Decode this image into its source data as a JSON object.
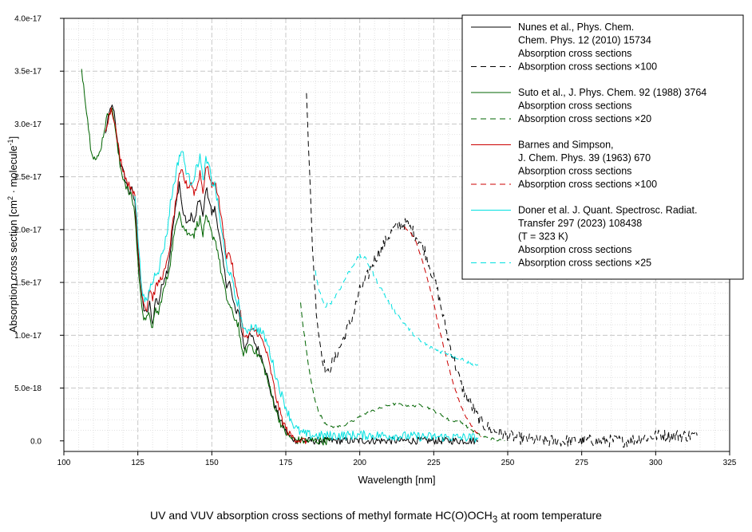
{
  "caption": {
    "main": "UV and VUV absorption cross sections of methyl formate HC(O)OCH",
    "sub": "3",
    "tail": " at room temperature"
  },
  "chart_data": {
    "type": "line",
    "title": "UV and VUV absorption cross sections of methyl formate HC(O)OCH3 at room temperature",
    "xlabel": "Wavelength [nm]",
    "ylabel": {
      "a": "Absorption cross section [cm",
      "sup1": "2",
      "b": " · molecule",
      "sup2": "-1",
      "c": "]"
    },
    "xlim": [
      100,
      325
    ],
    "ylim": [
      -1e-18,
      4e-17
    ],
    "xticks": [
      "100",
      "125",
      "150",
      "175",
      "200",
      "225",
      "250",
      "275",
      "300",
      "325"
    ],
    "yticks": [
      {
        "v": 0,
        "label": "0.0"
      },
      {
        "v": 5e-18,
        "label": "5.0e-18"
      },
      {
        "v": 1e-17,
        "label": "1.0e-17"
      },
      {
        "v": 1.5e-17,
        "label": "1.5e-17"
      },
      {
        "v": 2e-17,
        "label": "2.0e-17"
      },
      {
        "v": 2.5e-17,
        "label": "2.5e-17"
      },
      {
        "v": 3e-17,
        "label": "3.0e-17"
      },
      {
        "v": 3.5e-17,
        "label": "3.5e-17"
      },
      {
        "v": 4e-17,
        "label": "4.0e-17"
      }
    ],
    "grid": true,
    "legend_position": "top-right",
    "series": [
      {
        "name": "Nunes et al. absorption cross sections",
        "color": "#000000",
        "dash": "solid",
        "noise": 0.35,
        "x": [
          114,
          115,
          116,
          117,
          118,
          119,
          120,
          121,
          122,
          123,
          124,
          125,
          126,
          127,
          128,
          129,
          130,
          131,
          132,
          133,
          134,
          135,
          136,
          137,
          138,
          139,
          140,
          141,
          142,
          143,
          144,
          145,
          146,
          147,
          148,
          149,
          150,
          151,
          152,
          153,
          154,
          155,
          156,
          157,
          158,
          159,
          160,
          161,
          162,
          163,
          164,
          165,
          166,
          167,
          168,
          169,
          170,
          172,
          174,
          176,
          178,
          180,
          185,
          200,
          220,
          240
        ],
        "y": [
          2.9e-17,
          3.05e-17,
          3.18e-17,
          3.1e-17,
          2.85e-17,
          2.65e-17,
          2.55e-17,
          2.45e-17,
          2.35e-17,
          2.38e-17,
          2.25e-17,
          1.8e-17,
          1.45e-17,
          1.25e-17,
          1.2e-17,
          1.3e-17,
          1.1e-17,
          1.35e-17,
          1.3e-17,
          1.45e-17,
          1.55e-17,
          1.62e-17,
          1.8e-17,
          2.05e-17,
          2.25e-17,
          2.45e-17,
          2.2e-17,
          2.1e-17,
          2.05e-17,
          2.15e-17,
          2.05e-17,
          2.2e-17,
          2.3e-17,
          2.1e-17,
          2.4e-17,
          2.3e-17,
          2.15e-17,
          2.2e-17,
          2.05e-17,
          1.85e-17,
          1.65e-17,
          1.48e-17,
          1.5e-17,
          1.35e-17,
          1.22e-17,
          1.25e-17,
          1.05e-17,
          8.8e-18,
          9.5e-18,
          1e-17,
          9.6e-18,
          9e-18,
          8.5e-18,
          7.8e-18,
          7e-18,
          5.8e-18,
          4.5e-18,
          2.8e-18,
          1.4e-18,
          5e-19,
          1e-19,
          2e-20,
          8e-21,
          1.3e-20,
          1.8e-20,
          8e-21
        ]
      },
      {
        "name": "Nunes et al. absorption cross sections ×100",
        "color": "#000000",
        "dash": "7,5",
        "noise": 0.6,
        "x": [
          182,
          183,
          184,
          185,
          186,
          187,
          188,
          189,
          190,
          192,
          195,
          198,
          200,
          203,
          205,
          208,
          210,
          212,
          214,
          216,
          218,
          220,
          222,
          224,
          226,
          228,
          230,
          232,
          234,
          236,
          238,
          240,
          242,
          245,
          248,
          250,
          255,
          260,
          265,
          270,
          280,
          290,
          300,
          305,
          310,
          314
        ],
        "y": [
          3.35e-17,
          2.55e-17,
          1.85e-17,
          1.35e-17,
          1.05e-17,
          8.5e-18,
          7.2e-18,
          6.2e-18,
          7e-18,
          8e-18,
          1e-17,
          1.22e-17,
          1.42e-17,
          1.58e-17,
          1.72e-17,
          1.85e-17,
          1.95e-17,
          2.02e-17,
          2.05e-17,
          2.05e-17,
          1.98e-17,
          1.9e-17,
          1.8e-17,
          1.62e-17,
          1.45e-17,
          1.2e-17,
          9.5e-18,
          7.5e-18,
          5.5e-18,
          4.2e-18,
          3.2e-18,
          2.2e-18,
          1.5e-18,
          1e-18,
          7e-19,
          5e-19,
          2e-19,
          0.0,
          0.0,
          0.0,
          0.0,
          0.0,
          5e-19,
          5e-19,
          5e-19,
          5e-19
        ]
      },
      {
        "name": "Suto et al. absorption cross sections",
        "color": "#006400",
        "dash": "solid",
        "noise": 0.4,
        "x": [
          106,
          107,
          108,
          109,
          110,
          111,
          112,
          113,
          114,
          115,
          116,
          117,
          118,
          119,
          120,
          121,
          122,
          123,
          124,
          125,
          126,
          127,
          128,
          129,
          130,
          131,
          132,
          133,
          134,
          135,
          136,
          137,
          138,
          139,
          140,
          141,
          142,
          143,
          144,
          145,
          146,
          147,
          148,
          149,
          150,
          151,
          152,
          153,
          154,
          155,
          156,
          157,
          158,
          159,
          160,
          161,
          162,
          163,
          164,
          165,
          166,
          167,
          168,
          170,
          172,
          174,
          176,
          178,
          180,
          182,
          186,
          190
        ],
        "y": [
          3.52e-17,
          3.3e-17,
          3.05e-17,
          2.8e-17,
          2.7e-17,
          2.65e-17,
          2.72e-17,
          2.85e-17,
          3e-17,
          3.1e-17,
          3.15e-17,
          3.05e-17,
          2.8e-17,
          2.6e-17,
          2.5e-17,
          2.42e-17,
          2.35e-17,
          2.3e-17,
          2.15e-17,
          1.7e-17,
          1.35e-17,
          1.18e-17,
          1.15e-17,
          1.2e-17,
          1.05e-17,
          1.25e-17,
          1.2e-17,
          1.35e-17,
          1.45e-17,
          1.55e-17,
          1.7e-17,
          1.9e-17,
          2.05e-17,
          2.2e-17,
          2.05e-17,
          2e-17,
          1.95e-17,
          1.98e-17,
          1.95e-17,
          2.05e-17,
          2.1e-17,
          1.95e-17,
          2.1e-17,
          2.05e-17,
          1.95e-17,
          1.92e-17,
          1.8e-17,
          1.62e-17,
          1.48e-17,
          1.35e-17,
          1.28e-17,
          1.2e-17,
          1.15e-17,
          1.1e-17,
          8.5e-18,
          8.3e-18,
          8.8e-18,
          9.2e-18,
          8.8e-18,
          8.3e-18,
          8e-18,
          7.4e-18,
          6.6e-18,
          4.5e-18,
          2.6e-18,
          1.2e-18,
          4e-19,
          1e-19,
          3e-20,
          1e-20,
          5e-21,
          0.0
        ]
      },
      {
        "name": "Suto et al. absorption cross sections ×20",
        "color": "#006400",
        "dash": "7,5",
        "noise": 0.12,
        "x": [
          180,
          181,
          182,
          183,
          184,
          185,
          186,
          188,
          190,
          192,
          195,
          198,
          200,
          203,
          206,
          208,
          210,
          212,
          215,
          218,
          220,
          222,
          224,
          226,
          228,
          230,
          232,
          234,
          236,
          238,
          240,
          243,
          246,
          249
        ],
        "y": [
          1.3e-17,
          1.05e-17,
          8.5e-18,
          6.5e-18,
          5e-18,
          3.8e-18,
          2.8e-18,
          1.8e-18,
          1.3e-18,
          1.3e-18,
          1.5e-18,
          1.9e-18,
          2.3e-18,
          2.7e-18,
          3e-18,
          3.2e-18,
          3.4e-18,
          3.5e-18,
          3.4e-18,
          3.3e-18,
          3.4e-18,
          3.3e-18,
          3e-18,
          2.7e-18,
          2.4e-18,
          2e-18,
          1.9e-18,
          1.8e-18,
          1.4e-18,
          1e-18,
          6e-19,
          3e-19,
          1e-19,
          0.0
        ]
      },
      {
        "name": "Barnes and Simpson absorption cross sections",
        "color": "#CC0000",
        "dash": "solid",
        "noise": 0.35,
        "x": [
          114,
          115,
          116,
          117,
          118,
          119,
          120,
          121,
          122,
          123,
          124,
          125,
          126,
          127,
          128,
          129,
          130,
          131,
          132,
          133,
          134,
          135,
          136,
          137,
          138,
          139,
          140,
          141,
          142,
          143,
          144,
          145,
          146,
          147,
          148,
          149,
          150,
          151,
          152,
          153,
          154,
          155,
          156,
          157,
          158,
          159,
          160,
          161,
          162,
          163,
          164,
          165,
          166,
          167,
          168,
          169,
          170,
          172,
          174,
          176,
          178,
          180,
          182
        ],
        "y": [
          2.95e-17,
          3.05e-17,
          3.15e-17,
          3.05e-17,
          2.85e-17,
          2.68e-17,
          2.58e-17,
          2.48e-17,
          2.42e-17,
          2.4e-17,
          2.3e-17,
          1.85e-17,
          1.5e-17,
          1.3e-17,
          1.25e-17,
          1.45e-17,
          1.35e-17,
          1.45e-17,
          1.5e-17,
          1.55e-17,
          1.6e-17,
          1.7e-17,
          1.88e-17,
          2.1e-17,
          2.3e-17,
          2.5e-17,
          2.55e-17,
          2.45e-17,
          2.4e-17,
          2.45e-17,
          2.35e-17,
          2.4e-17,
          2.55e-17,
          2.35e-17,
          2.6e-17,
          2.55e-17,
          2.4e-17,
          2.45e-17,
          2.35e-17,
          2.15e-17,
          1.95e-17,
          1.75e-17,
          1.78e-17,
          1.65e-17,
          1.45e-17,
          1.35e-17,
          1.15e-17,
          9.7e-18,
          9.8e-18,
          1.02e-17,
          1.05e-17,
          1.04e-17,
          1e-17,
          9.5e-18,
          8.8e-18,
          7.8e-18,
          6.5e-18,
          3.8e-18,
          1.8e-18,
          7e-19,
          2e-19,
          5e-20,
          0.0
        ]
      },
      {
        "name": "Barnes and Simpson absorption cross sections ×100",
        "color": "#CC0000",
        "dash": "7,5",
        "noise": 0.1,
        "x": [
          215,
          217,
          219,
          221,
          223,
          225,
          227,
          229,
          231,
          233,
          235,
          237,
          239,
          241
        ],
        "y": [
          2.02e-17,
          1.98e-17,
          1.88e-17,
          1.72e-17,
          1.52e-17,
          1.3e-17,
          1.05e-17,
          8.2e-18,
          6e-18,
          4.2e-18,
          2.8e-18,
          1.7e-18,
          9e-19,
          4e-19
        ]
      },
      {
        "name": "Doner et al. absorption cross sections",
        "color": "#00E0E0",
        "dash": "solid",
        "noise": 0.45,
        "x": [
          124,
          125,
          126,
          127,
          128,
          129,
          130,
          131,
          132,
          133,
          134,
          135,
          136,
          137,
          138,
          139,
          140,
          141,
          142,
          143,
          144,
          145,
          146,
          147,
          148,
          149,
          150,
          151,
          152,
          153,
          154,
          155,
          156,
          157,
          158,
          159,
          160,
          161,
          162,
          163,
          164,
          165,
          166,
          167,
          168,
          169,
          170,
          172,
          174,
          176,
          178,
          180,
          182,
          185,
          190,
          200,
          210,
          220,
          230,
          240
        ],
        "y": [
          2.35e-17,
          1.95e-17,
          1.55e-17,
          1.35e-17,
          1.3e-17,
          1.45e-17,
          1.5e-17,
          1.6e-17,
          1.62e-17,
          1.75e-17,
          1.85e-17,
          2e-17,
          2.25e-17,
          2.4e-17,
          2.55e-17,
          2.7e-17,
          2.75e-17,
          2.6e-17,
          2.5e-17,
          2.45e-17,
          2.5e-17,
          2.6e-17,
          2.7e-17,
          2.45e-17,
          2.65e-17,
          2.6e-17,
          2.45e-17,
          2.42e-17,
          2.25e-17,
          2.05e-17,
          1.85e-17,
          1.65e-17,
          1.6e-17,
          1.5e-17,
          1.35e-17,
          1.3e-17,
          1.15e-17,
          1.02e-17,
          1.05e-17,
          1.08e-17,
          1.08e-17,
          1.07e-17,
          1.05e-17,
          1.02e-17,
          9.7e-18,
          9e-18,
          8e-18,
          5.8e-18,
          4e-18,
          2.5e-18,
          1.3e-18,
          8e-19,
          6e-19,
          5e-19,
          5e-19,
          5.5e-19,
          5e-19,
          4e-19,
          3.5e-19,
          3e-19
        ]
      },
      {
        "name": "Doner et al. absorption cross sections ×25",
        "color": "#00E0E0",
        "dash": "7,5",
        "noise": 0.2,
        "x": [
          185,
          186,
          187,
          188,
          190,
          192,
          194,
          196,
          198,
          200,
          202,
          204,
          206,
          208,
          210,
          212,
          214,
          216,
          218,
          220,
          222,
          224,
          226,
          228,
          230,
          232,
          234,
          236,
          238,
          240
        ],
        "y": [
          1.6e-17,
          1.45e-17,
          1.35e-17,
          1.28e-17,
          1.3e-17,
          1.38e-17,
          1.48e-17,
          1.58e-17,
          1.68e-17,
          1.75e-17,
          1.72e-17,
          1.62e-17,
          1.5e-17,
          1.4e-17,
          1.3e-17,
          1.22e-17,
          1.15e-17,
          1.08e-17,
          1.02e-17,
          9.5e-18,
          9.2e-18,
          8.8e-18,
          8.6e-18,
          8.4e-18,
          8.3e-18,
          8e-18,
          7.8e-18,
          7.5e-18,
          7.2e-18,
          7.2e-18
        ]
      }
    ],
    "legend": [
      {
        "color": "#000000",
        "dash": "solid",
        "lines": [
          "Nunes et al., Phys. Chem.",
          "Chem. Phys. 12 (2010) 15734",
          "Absorption cross sections"
        ]
      },
      {
        "color": "#000000",
        "dash": "7,5",
        "lines": [
          "Absorption cross sections ×100"
        ]
      },
      {
        "color": "#006400",
        "dash": "solid",
        "lines": [
          "Suto et al., J. Phys. Chem. 92  (1988) 3764",
          "Absorption cross sections"
        ]
      },
      {
        "color": "#006400",
        "dash": "7,5",
        "lines": [
          "Absorption cross sections ×20"
        ]
      },
      {
        "color": "#CC0000",
        "dash": "solid",
        "lines": [
          "Barnes and Simpson,",
          "J. Chem. Phys. 39 (1963) 670",
          "Absorption cross sections"
        ]
      },
      {
        "color": "#CC0000",
        "dash": "7,5",
        "lines": [
          "Absorption cross sections ×100"
        ]
      },
      {
        "color": "#00E0E0",
        "dash": "solid",
        "lines": [
          "Doner et al. J. Quant. Spectrosc. Radiat.",
          "Transfer 297 (2023) 108438",
          "(T = 323 K)",
          "Absorption cross sections"
        ]
      },
      {
        "color": "#00E0E0",
        "dash": "7,5",
        "lines": [
          "Absorption cross sections ×25"
        ]
      }
    ]
  }
}
